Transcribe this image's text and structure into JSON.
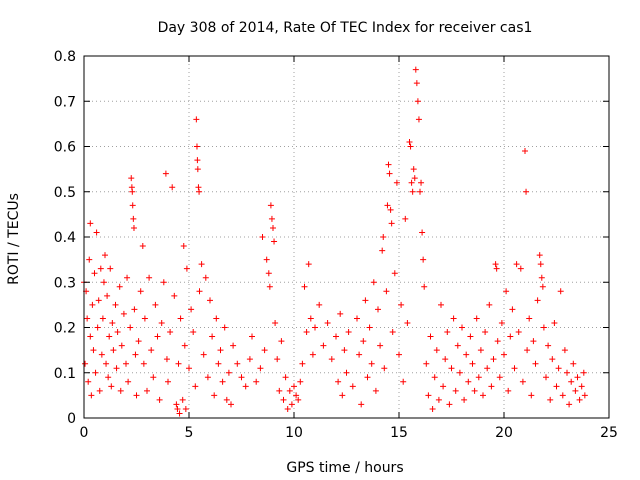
{
  "chart_data": {
    "type": "scatter",
    "title": "Day 308 of 2014, Rate Of TEC Index for receiver cas1",
    "xlabel": "GPS time / hours",
    "ylabel": "ROTI / TECUs",
    "xlim": [
      0,
      25
    ],
    "ylim": [
      0,
      0.8
    ],
    "xticks": [
      0,
      5,
      10,
      15,
      20,
      25
    ],
    "yticks": [
      0,
      0.1,
      0.2,
      0.3,
      0.4,
      0.5,
      0.6,
      0.7,
      0.8
    ],
    "xtick_labels": [
      "0",
      "5",
      "10",
      "15",
      "20",
      "25"
    ],
    "ytick_labels": [
      "0",
      "0.1",
      "0.2",
      "0.3",
      "0.4",
      "0.5",
      "0.6",
      "0.7",
      "0.8"
    ],
    "grid": true,
    "marker": "+",
    "color": "#ff0000",
    "series": [
      {
        "name": "ROTI",
        "points": [
          [
            0.0,
            0.3
          ],
          [
            0.05,
            0.12
          ],
          [
            0.1,
            0.28
          ],
          [
            0.15,
            0.22
          ],
          [
            0.2,
            0.08
          ],
          [
            0.25,
            0.35
          ],
          [
            0.3,
            0.43
          ],
          [
            0.3,
            0.18
          ],
          [
            0.35,
            0.05
          ],
          [
            0.4,
            0.25
          ],
          [
            0.45,
            0.15
          ],
          [
            0.5,
            0.32
          ],
          [
            0.55,
            0.1
          ],
          [
            0.6,
            0.41
          ],
          [
            0.65,
            0.2
          ],
          [
            0.7,
            0.26
          ],
          [
            0.75,
            0.06
          ],
          [
            0.8,
            0.33
          ],
          [
            0.85,
            0.14
          ],
          [
            0.9,
            0.22
          ],
          [
            0.95,
            0.3
          ],
          [
            1.0,
            0.36
          ],
          [
            1.05,
            0.12
          ],
          [
            1.1,
            0.27
          ],
          [
            1.15,
            0.09
          ],
          [
            1.2,
            0.18
          ],
          [
            1.25,
            0.33
          ],
          [
            1.3,
            0.07
          ],
          [
            1.35,
            0.21
          ],
          [
            1.4,
            0.15
          ],
          [
            1.5,
            0.25
          ],
          [
            1.55,
            0.11
          ],
          [
            1.6,
            0.19
          ],
          [
            1.7,
            0.29
          ],
          [
            1.75,
            0.06
          ],
          [
            1.8,
            0.16
          ],
          [
            1.9,
            0.23
          ],
          [
            2.0,
            0.12
          ],
          [
            2.05,
            0.31
          ],
          [
            2.1,
            0.08
          ],
          [
            2.2,
            0.2
          ],
          [
            2.25,
            0.53
          ],
          [
            2.28,
            0.51
          ],
          [
            2.3,
            0.5
          ],
          [
            2.32,
            0.47
          ],
          [
            2.35,
            0.44
          ],
          [
            2.38,
            0.42
          ],
          [
            2.4,
            0.24
          ],
          [
            2.45,
            0.14
          ],
          [
            2.5,
            0.05
          ],
          [
            2.6,
            0.17
          ],
          [
            2.7,
            0.28
          ],
          [
            2.8,
            0.38
          ],
          [
            2.85,
            0.12
          ],
          [
            2.9,
            0.22
          ],
          [
            3.0,
            0.06
          ],
          [
            3.1,
            0.31
          ],
          [
            3.2,
            0.15
          ],
          [
            3.3,
            0.09
          ],
          [
            3.4,
            0.25
          ],
          [
            3.5,
            0.18
          ],
          [
            3.6,
            0.04
          ],
          [
            3.7,
            0.21
          ],
          [
            3.8,
            0.3
          ],
          [
            3.9,
            0.54
          ],
          [
            3.95,
            0.13
          ],
          [
            4.0,
            0.08
          ],
          [
            4.1,
            0.19
          ],
          [
            4.2,
            0.51
          ],
          [
            4.3,
            0.27
          ],
          [
            4.4,
            0.03
          ],
          [
            4.45,
            0.02
          ],
          [
            4.5,
            0.12
          ],
          [
            4.55,
            0.01
          ],
          [
            4.6,
            0.22
          ],
          [
            4.7,
            0.04
          ],
          [
            4.75,
            0.38
          ],
          [
            4.8,
            0.16
          ],
          [
            4.85,
            0.02
          ],
          [
            4.9,
            0.33
          ],
          [
            5.0,
            0.11
          ],
          [
            5.1,
            0.24
          ],
          [
            5.2,
            0.19
          ],
          [
            5.3,
            0.07
          ],
          [
            5.35,
            0.66
          ],
          [
            5.38,
            0.6
          ],
          [
            5.4,
            0.57
          ],
          [
            5.42,
            0.55
          ],
          [
            5.45,
            0.51
          ],
          [
            5.48,
            0.5
          ],
          [
            5.5,
            0.28
          ],
          [
            5.6,
            0.34
          ],
          [
            5.7,
            0.14
          ],
          [
            5.8,
            0.31
          ],
          [
            5.9,
            0.09
          ],
          [
            6.0,
            0.26
          ],
          [
            6.1,
            0.18
          ],
          [
            6.2,
            0.05
          ],
          [
            6.3,
            0.22
          ],
          [
            6.4,
            0.12
          ],
          [
            6.5,
            0.15
          ],
          [
            6.6,
            0.08
          ],
          [
            6.7,
            0.2
          ],
          [
            6.8,
            0.04
          ],
          [
            6.9,
            0.1
          ],
          [
            7.0,
            0.03
          ],
          [
            7.1,
            0.16
          ],
          [
            7.3,
            0.12
          ],
          [
            7.5,
            0.09
          ],
          [
            7.7,
            0.07
          ],
          [
            7.9,
            0.13
          ],
          [
            8.0,
            0.18
          ],
          [
            8.2,
            0.08
          ],
          [
            8.4,
            0.11
          ],
          [
            8.5,
            0.4
          ],
          [
            8.6,
            0.15
          ],
          [
            8.7,
            0.35
          ],
          [
            8.8,
            0.32
          ],
          [
            8.85,
            0.29
          ],
          [
            8.9,
            0.47
          ],
          [
            8.95,
            0.44
          ],
          [
            9.0,
            0.42
          ],
          [
            9.05,
            0.39
          ],
          [
            9.1,
            0.21
          ],
          [
            9.2,
            0.13
          ],
          [
            9.3,
            0.06
          ],
          [
            9.4,
            0.17
          ],
          [
            9.5,
            0.04
          ],
          [
            9.6,
            0.09
          ],
          [
            9.7,
            0.02
          ],
          [
            9.8,
            0.06
          ],
          [
            9.9,
            0.03
          ],
          [
            10.0,
            0.07
          ],
          [
            10.1,
            0.05
          ],
          [
            10.2,
            0.04
          ],
          [
            10.3,
            0.08
          ],
          [
            10.4,
            0.12
          ],
          [
            10.5,
            0.29
          ],
          [
            10.6,
            0.19
          ],
          [
            10.7,
            0.34
          ],
          [
            10.8,
            0.22
          ],
          [
            10.9,
            0.14
          ],
          [
            11.0,
            0.2
          ],
          [
            11.2,
            0.25
          ],
          [
            11.4,
            0.16
          ],
          [
            11.6,
            0.21
          ],
          [
            11.8,
            0.13
          ],
          [
            12.0,
            0.18
          ],
          [
            12.1,
            0.08
          ],
          [
            12.2,
            0.23
          ],
          [
            12.3,
            0.05
          ],
          [
            12.4,
            0.15
          ],
          [
            12.5,
            0.1
          ],
          [
            12.6,
            0.19
          ],
          [
            12.8,
            0.07
          ],
          [
            13.0,
            0.22
          ],
          [
            13.1,
            0.14
          ],
          [
            13.2,
            0.03
          ],
          [
            13.3,
            0.17
          ],
          [
            13.4,
            0.26
          ],
          [
            13.5,
            0.09
          ],
          [
            13.6,
            0.2
          ],
          [
            13.7,
            0.12
          ],
          [
            13.8,
            0.3
          ],
          [
            13.9,
            0.06
          ],
          [
            14.0,
            0.24
          ],
          [
            14.1,
            0.16
          ],
          [
            14.2,
            0.37
          ],
          [
            14.25,
            0.4
          ],
          [
            14.3,
            0.11
          ],
          [
            14.4,
            0.28
          ],
          [
            14.45,
            0.47
          ],
          [
            14.5,
            0.56
          ],
          [
            14.55,
            0.54
          ],
          [
            14.6,
            0.46
          ],
          [
            14.65,
            0.43
          ],
          [
            14.7,
            0.19
          ],
          [
            14.8,
            0.32
          ],
          [
            14.9,
            0.52
          ],
          [
            15.0,
            0.14
          ],
          [
            15.1,
            0.25
          ],
          [
            15.2,
            0.08
          ],
          [
            15.3,
            0.44
          ],
          [
            15.4,
            0.21
          ],
          [
            15.5,
            0.61
          ],
          [
            15.55,
            0.6
          ],
          [
            15.6,
            0.52
          ],
          [
            15.65,
            0.5
          ],
          [
            15.7,
            0.55
          ],
          [
            15.75,
            0.53
          ],
          [
            15.8,
            0.77
          ],
          [
            15.85,
            0.74
          ],
          [
            15.9,
            0.7
          ],
          [
            15.95,
            0.66
          ],
          [
            16.0,
            0.5
          ],
          [
            16.05,
            0.52
          ],
          [
            16.1,
            0.41
          ],
          [
            16.15,
            0.35
          ],
          [
            16.2,
            0.29
          ],
          [
            16.3,
            0.12
          ],
          [
            16.4,
            0.05
          ],
          [
            16.5,
            0.18
          ],
          [
            16.6,
            0.02
          ],
          [
            16.7,
            0.09
          ],
          [
            16.8,
            0.15
          ],
          [
            16.9,
            0.04
          ],
          [
            17.0,
            0.25
          ],
          [
            17.1,
            0.07
          ],
          [
            17.2,
            0.13
          ],
          [
            17.3,
            0.19
          ],
          [
            17.4,
            0.03
          ],
          [
            17.5,
            0.11
          ],
          [
            17.6,
            0.22
          ],
          [
            17.7,
            0.06
          ],
          [
            17.8,
            0.16
          ],
          [
            17.9,
            0.1
          ],
          [
            18.0,
            0.2
          ],
          [
            18.1,
            0.04
          ],
          [
            18.2,
            0.14
          ],
          [
            18.3,
            0.08
          ],
          [
            18.4,
            0.18
          ],
          [
            18.5,
            0.12
          ],
          [
            18.6,
            0.06
          ],
          [
            18.7,
            0.22
          ],
          [
            18.8,
            0.09
          ],
          [
            18.9,
            0.15
          ],
          [
            19.0,
            0.05
          ],
          [
            19.1,
            0.19
          ],
          [
            19.2,
            0.11
          ],
          [
            19.3,
            0.25
          ],
          [
            19.4,
            0.07
          ],
          [
            19.5,
            0.13
          ],
          [
            19.6,
            0.34
          ],
          [
            19.65,
            0.33
          ],
          [
            19.7,
            0.17
          ],
          [
            19.8,
            0.09
          ],
          [
            19.9,
            0.21
          ],
          [
            20.0,
            0.14
          ],
          [
            20.1,
            0.28
          ],
          [
            20.2,
            0.06
          ],
          [
            20.3,
            0.18
          ],
          [
            20.4,
            0.24
          ],
          [
            20.5,
            0.11
          ],
          [
            20.6,
            0.34
          ],
          [
            20.7,
            0.19
          ],
          [
            20.8,
            0.33
          ],
          [
            20.9,
            0.08
          ],
          [
            21.0,
            0.59
          ],
          [
            21.05,
            0.5
          ],
          [
            21.1,
            0.15
          ],
          [
            21.2,
            0.22
          ],
          [
            21.3,
            0.05
          ],
          [
            21.4,
            0.17
          ],
          [
            21.5,
            0.12
          ],
          [
            21.6,
            0.26
          ],
          [
            21.7,
            0.36
          ],
          [
            21.75,
            0.34
          ],
          [
            21.8,
            0.31
          ],
          [
            21.85,
            0.29
          ],
          [
            21.9,
            0.2
          ],
          [
            22.0,
            0.09
          ],
          [
            22.1,
            0.16
          ],
          [
            22.2,
            0.04
          ],
          [
            22.3,
            0.13
          ],
          [
            22.4,
            0.21
          ],
          [
            22.5,
            0.07
          ],
          [
            22.6,
            0.11
          ],
          [
            22.7,
            0.28
          ],
          [
            22.8,
            0.05
          ],
          [
            22.9,
            0.15
          ],
          [
            23.0,
            0.1
          ],
          [
            23.1,
            0.03
          ],
          [
            23.2,
            0.08
          ],
          [
            23.3,
            0.12
          ],
          [
            23.4,
            0.06
          ],
          [
            23.5,
            0.09
          ],
          [
            23.6,
            0.04
          ],
          [
            23.7,
            0.07
          ],
          [
            23.8,
            0.1
          ],
          [
            23.85,
            0.05
          ]
        ]
      }
    ]
  }
}
